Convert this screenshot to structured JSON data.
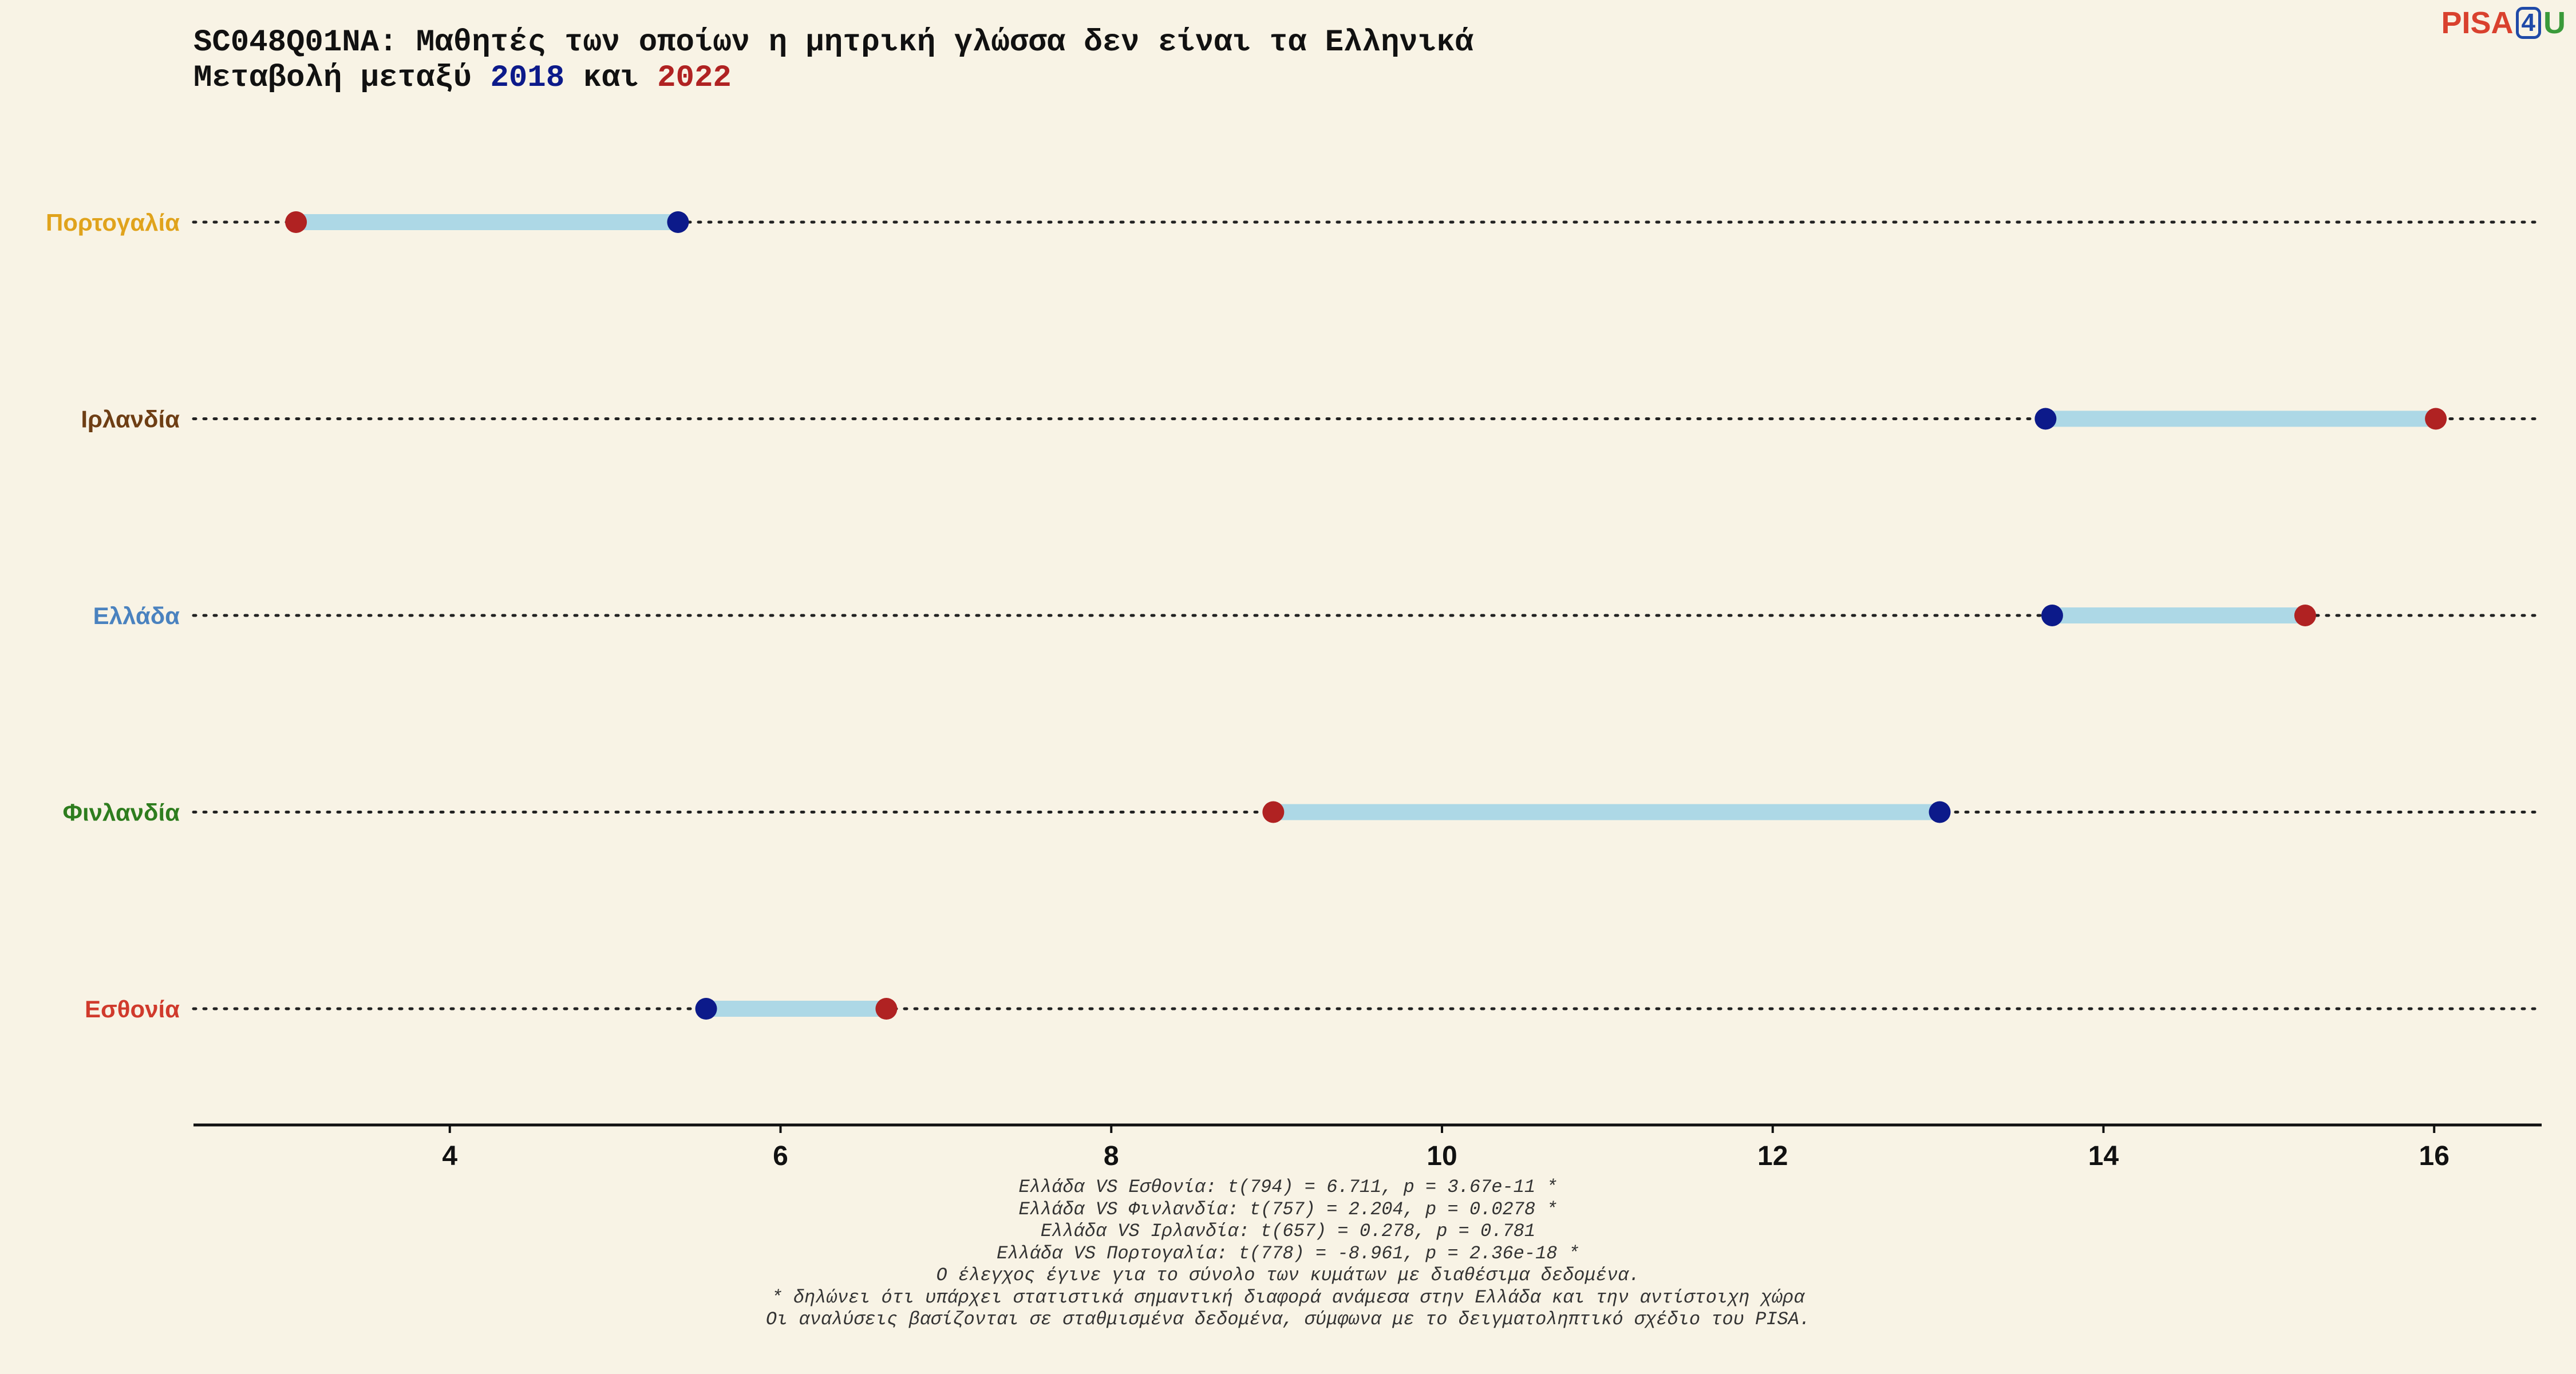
{
  "title": {
    "line1": "SC048Q01NA: Μαθητές των οποίων η μητρική γλώσσα δεν είναι τα Ελληνικά",
    "line2_prefix": "Μεταβολή μεταξύ",
    "year_a": "2018",
    "line2_mid": "και",
    "year_b": "2022"
  },
  "logo": {
    "part1": "PISA",
    "part2": "4",
    "part3": "U"
  },
  "colors": {
    "background": "#f8f3e5",
    "point_2018": "#0c1a8a",
    "point_2022": "#b02222",
    "connector": "#add8e6",
    "country_Portugal": "#e0a31c",
    "country_Ireland": "#6e3e14",
    "country_Greece": "#4a82bf",
    "country_Finland": "#2e7d1e",
    "country_Estonia": "#d03a2c"
  },
  "chart_data": {
    "type": "dumbbell",
    "xlabel": "",
    "ylabel": "",
    "xlim": [
      2.45,
      16.65
    ],
    "xticks": [
      4,
      6,
      8,
      10,
      12,
      14,
      16
    ],
    "grid": "dotted horizontal line per category",
    "legend": "none (year colors shown in title)",
    "series": [
      {
        "name": "2018",
        "color": "#0c1a8a"
      },
      {
        "name": "2022",
        "color": "#b02222"
      }
    ],
    "rows": [
      {
        "country": "Πορτογαλία",
        "color": "#e0a31c",
        "v2018": 5.38,
        "v2022": 3.07
      },
      {
        "country": "Ιρλανδία",
        "color": "#6e3e14",
        "v2018": 13.65,
        "v2022": 16.01
      },
      {
        "country": "Ελλάδα",
        "color": "#4a82bf",
        "v2018": 13.69,
        "v2022": 15.22
      },
      {
        "country": "Φινλανδία",
        "color": "#2e7d1e",
        "v2018": 13.01,
        "v2022": 8.98
      },
      {
        "country": "Εσθονία",
        "color": "#d03a2c",
        "v2018": 5.55,
        "v2022": 6.64
      }
    ]
  },
  "footnotes": [
    "Ελλάδα VS Εσθονία: t(794) = 6.711, p = 3.67e-11 *",
    "Ελλάδα VS Φινλανδία: t(757) = 2.204, p = 0.0278 *",
    "Ελλάδα VS Ιρλανδία: t(657) = 0.278, p = 0.781",
    "Ελλάδα VS Πορτογαλία: t(778) = -8.961, p = 2.36e-18 *",
    "Ο έλεγχος έγινε για το σύνολο των κυμάτων με διαθέσιμα δεδομένα.",
    "* δηλώνει ότι υπάρχει στατιστικά σημαντική διαφορά ανάμεσα στην Ελλάδα και την αντίστοιχη χώρα",
    "Οι αναλύσεις βασίζονται σε σταθμισμένα δεδομένα, σύμφωνα με το δειγματοληπτικό σχέδιο του PISA."
  ]
}
